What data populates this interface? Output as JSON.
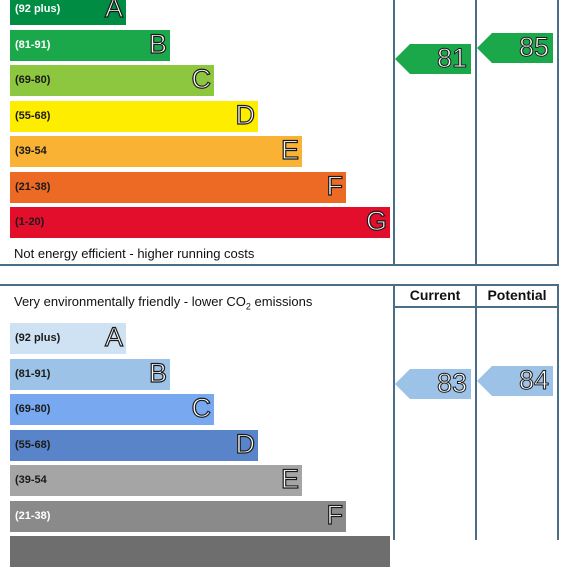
{
  "chart_data": [
    {
      "type": "bar",
      "title": "",
      "footer": "Not energy efficient - higher running costs",
      "categories": [
        "A",
        "B",
        "C",
        "D",
        "E",
        "F",
        "G"
      ],
      "bands": [
        {
          "letter": "A",
          "range": "(92 plus)",
          "color": "#008c42",
          "text_color": "#ffffff"
        },
        {
          "letter": "B",
          "range": "(81-91)",
          "color": "#1aa84a",
          "text_color": "#ffffff"
        },
        {
          "letter": "C",
          "range": "(69-80)",
          "color": "#8dc63f",
          "text_color": "#1a1a1a"
        },
        {
          "letter": "D",
          "range": "(55-68)",
          "color": "#ffed00",
          "text_color": "#1a1a1a"
        },
        {
          "letter": "E",
          "range": "(39-54",
          "color": "#f9b233",
          "text_color": "#1a1a1a"
        },
        {
          "letter": "F",
          "range": "(21-38)",
          "color": "#ec6a24",
          "text_color": "#1a1a1a"
        },
        {
          "letter": "G",
          "range": "(1-20)",
          "color": "#e30d2c",
          "text_color": "#1a1a1a"
        }
      ],
      "series": [
        {
          "name": "",
          "value": 81,
          "color": "#1aa84a"
        },
        {
          "name": "",
          "value": 85,
          "color": "#1aa84a"
        }
      ]
    },
    {
      "type": "bar",
      "title": "Very environmentally friendly - lower CO",
      "title_sub": "2",
      "title_tail": " emissions",
      "headers": {
        "current": "Current",
        "potential": "Potential"
      },
      "categories": [
        "A",
        "B",
        "C",
        "D",
        "E",
        "F"
      ],
      "bands": [
        {
          "letter": "A",
          "range": "(92 plus)",
          "color": "#cfe2f3",
          "text_color": "#1a1a1a"
        },
        {
          "letter": "B",
          "range": "(81-91)",
          "color": "#9cc2e8",
          "text_color": "#1a1a1a"
        },
        {
          "letter": "C",
          "range": "(69-80)",
          "color": "#78a9f0",
          "text_color": "#1a1a1a"
        },
        {
          "letter": "D",
          "range": "(55-68)",
          "color": "#5a84c9",
          "text_color": "#1a1a1a"
        },
        {
          "letter": "E",
          "range": "(39-54",
          "color": "#a5a5a5",
          "text_color": "#1a1a1a"
        },
        {
          "letter": "F",
          "range": "(21-38)",
          "color": "#8a8a8a",
          "text_color": "#ffffff"
        }
      ],
      "series": [
        {
          "name": "Current",
          "value": 83,
          "color": "#9cc2e8"
        },
        {
          "name": "Potential",
          "value": 84,
          "color": "#9cc2e8"
        }
      ]
    }
  ]
}
